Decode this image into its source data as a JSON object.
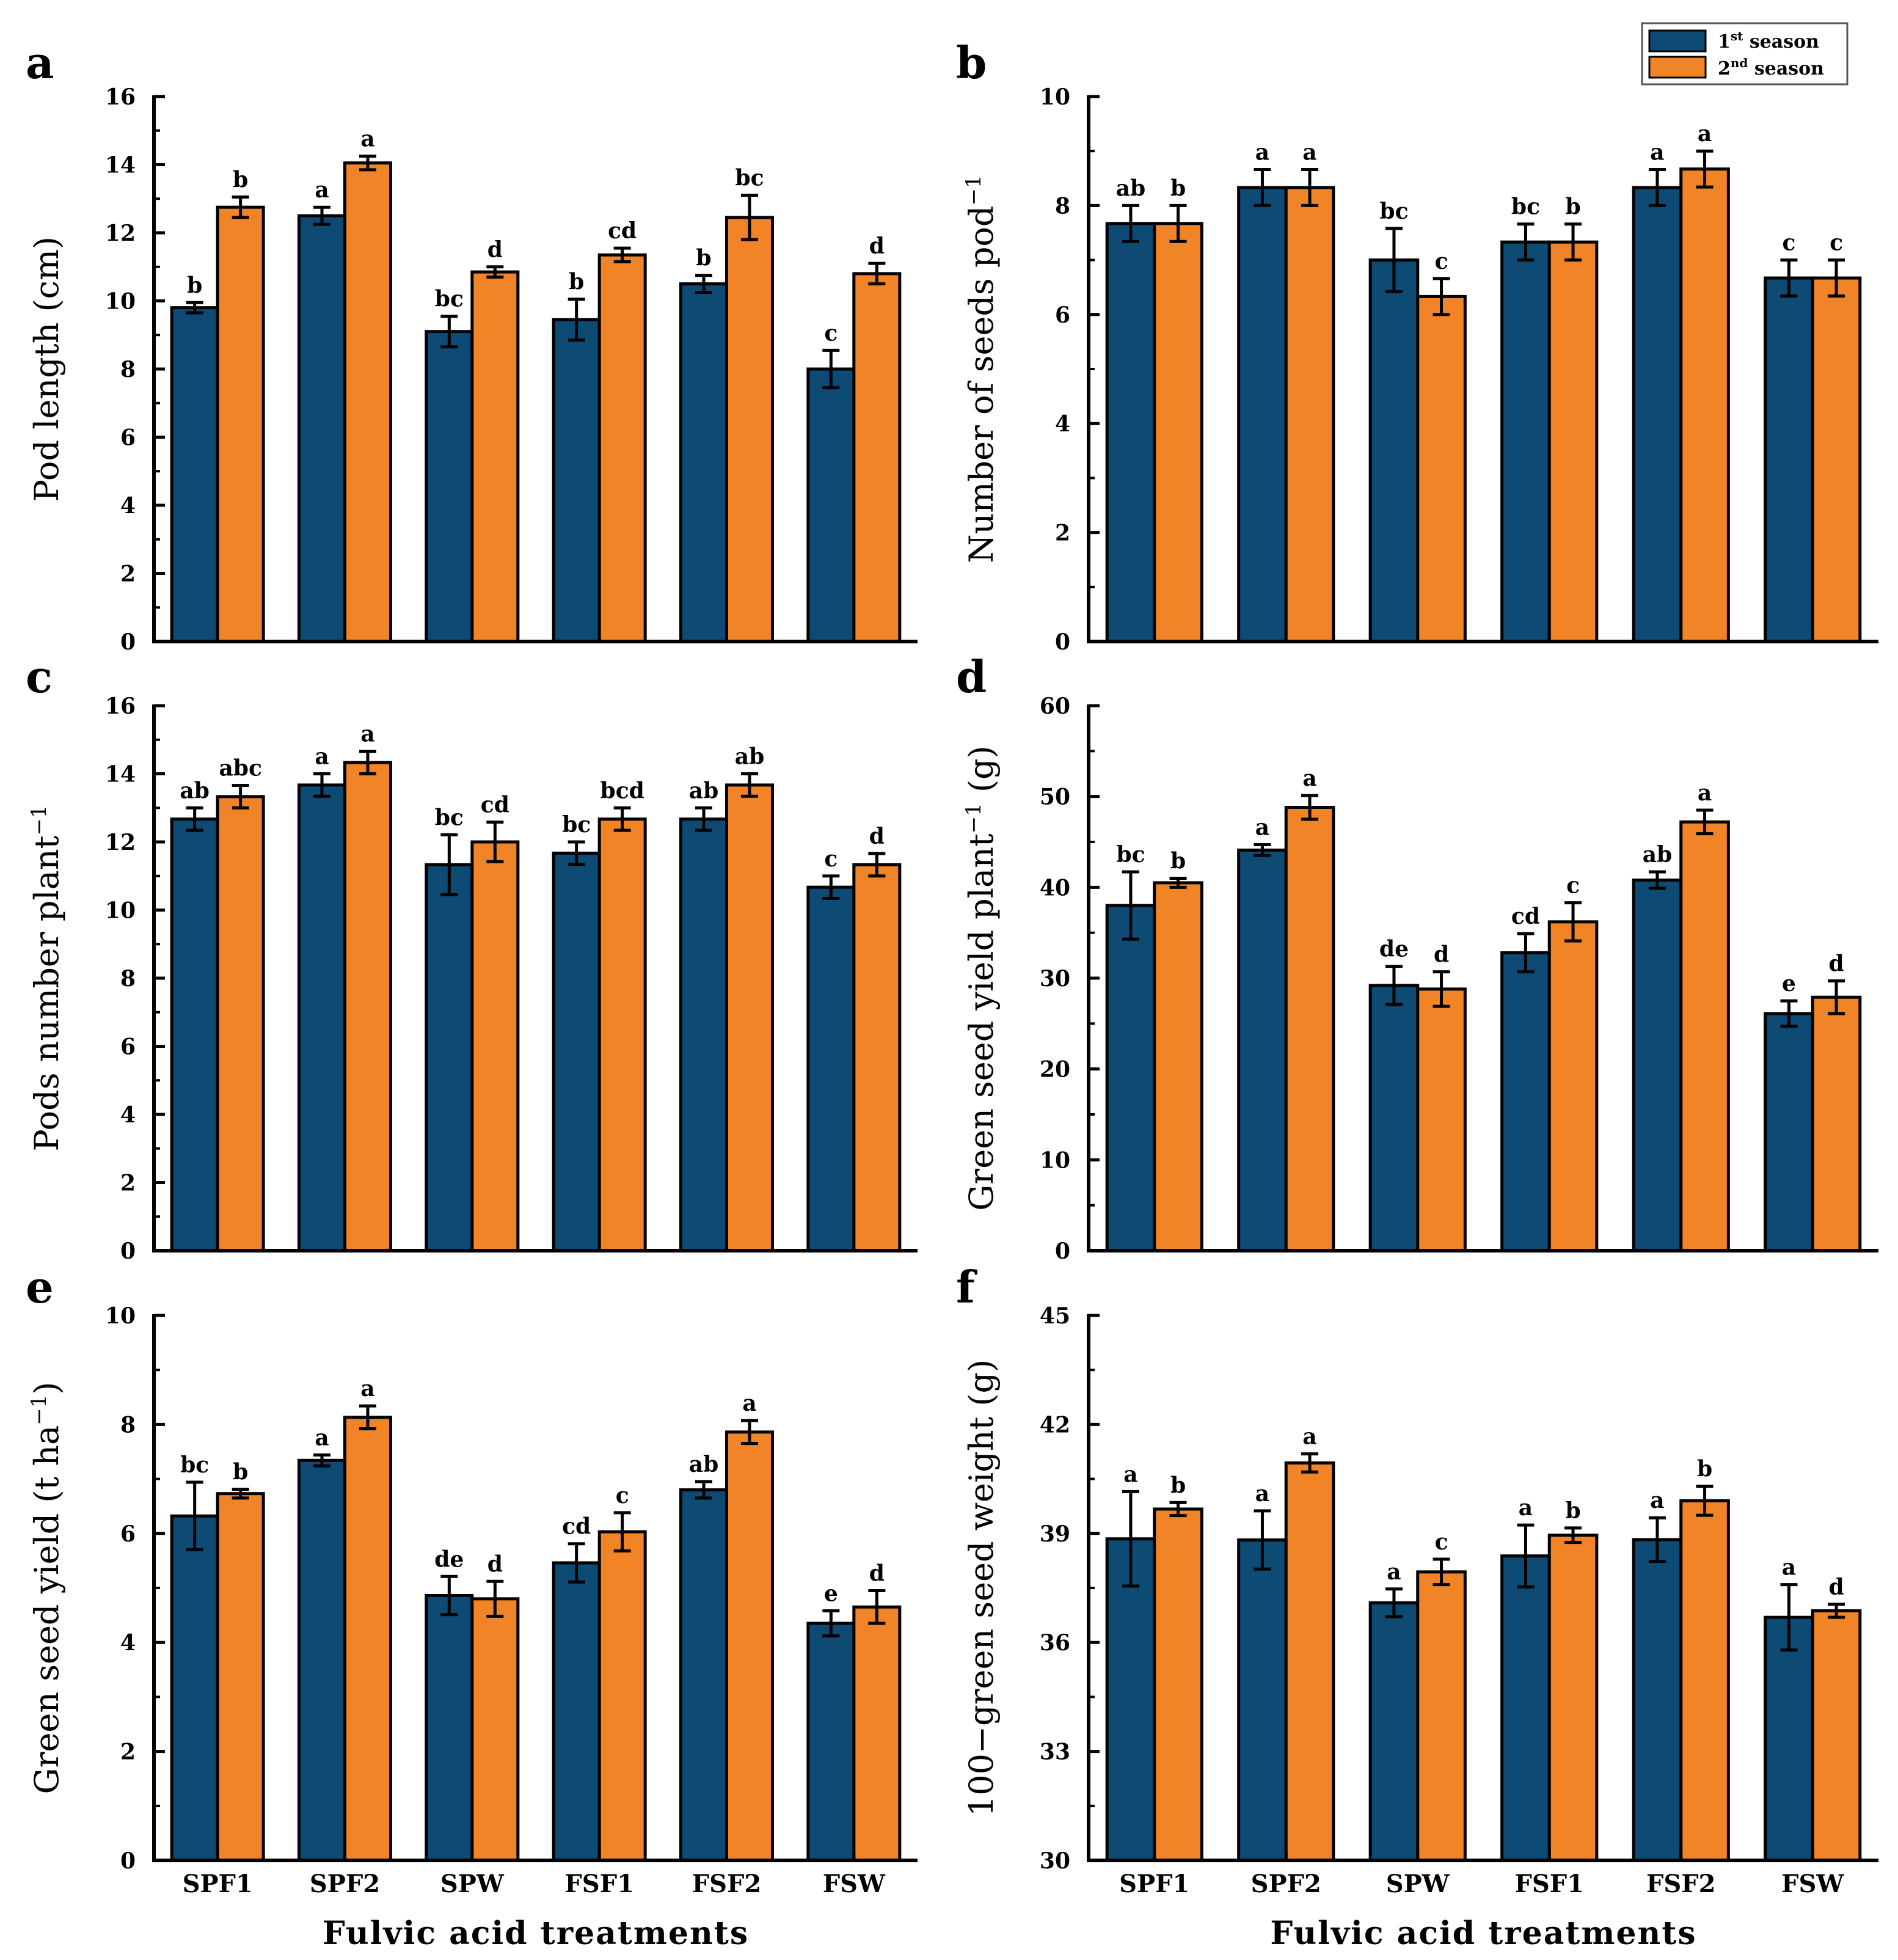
{
  "colors": {
    "season1": "#0D4A74",
    "season2": "#F28428",
    "axis": "#000000"
  },
  "legend": {
    "season1_base": "1",
    "season1_sup": "st",
    "season1_rest": " season",
    "season2_base": "2",
    "season2_sup": "nd",
    "season2_rest": " season"
  },
  "chart_data": [
    {
      "panel": "a",
      "type": "bar",
      "categories": [
        "SPF1",
        "SPF2",
        "SPW",
        "FSF1",
        "FSF2",
        "FSW"
      ],
      "ylabel": "Pod length (cm)",
      "ylabel_parts": [
        "Pod length (cm)"
      ],
      "xlabel": "",
      "ylim": [
        0,
        16
      ],
      "yticks": [
        0,
        2,
        4,
        6,
        8,
        10,
        12,
        14,
        16
      ],
      "series": [
        {
          "name": "1st season",
          "values": [
            9.8,
            12.5,
            9.1,
            9.45,
            10.5,
            8.0
          ],
          "errors": [
            0.15,
            0.25,
            0.45,
            0.6,
            0.25,
            0.55
          ],
          "labels": [
            "b",
            "a",
            "bc",
            "b",
            "b",
            "c"
          ]
        },
        {
          "name": "2nd season",
          "values": [
            12.75,
            14.05,
            10.85,
            11.35,
            12.45,
            10.8
          ],
          "errors": [
            0.3,
            0.2,
            0.15,
            0.2,
            0.65,
            0.3
          ],
          "labels": [
            "b",
            "a",
            "d",
            "cd",
            "bc",
            "d"
          ]
        }
      ]
    },
    {
      "panel": "b",
      "type": "bar",
      "categories": [
        "SPF1",
        "SPF2",
        "SPW",
        "FSF1",
        "FSF2",
        "FSW"
      ],
      "ylabel": "Number of seeds pod−1",
      "ylabel_parts": [
        "Number of seeds pod",
        "−1"
      ],
      "xlabel": "",
      "ylim": [
        0,
        10
      ],
      "yticks": [
        0,
        2,
        4,
        6,
        8,
        10
      ],
      "series": [
        {
          "name": "1st season",
          "values": [
            7.67,
            8.33,
            7.0,
            7.33,
            8.33,
            6.67
          ],
          "errors": [
            0.33,
            0.33,
            0.58,
            0.33,
            0.33,
            0.33
          ],
          "labels": [
            "ab",
            "a",
            "bc",
            "bc",
            "a",
            "c"
          ]
        },
        {
          "name": "2nd season",
          "values": [
            7.67,
            8.33,
            6.33,
            7.33,
            8.67,
            6.67
          ],
          "errors": [
            0.33,
            0.33,
            0.33,
            0.33,
            0.33,
            0.33
          ],
          "labels": [
            "b",
            "a",
            "c",
            "b",
            "a",
            "c"
          ]
        }
      ]
    },
    {
      "panel": "c",
      "type": "bar",
      "categories": [
        "SPF1",
        "SPF2",
        "SPW",
        "FSF1",
        "FSF2",
        "FSW"
      ],
      "ylabel": "Pods number plant−1",
      "ylabel_parts": [
        "Pods number plant",
        "−1"
      ],
      "xlabel": "",
      "ylim": [
        0,
        16
      ],
      "yticks": [
        0,
        2,
        4,
        6,
        8,
        10,
        12,
        14,
        16
      ],
      "series": [
        {
          "name": "1st season",
          "values": [
            12.67,
            13.67,
            11.33,
            11.67,
            12.67,
            10.67
          ],
          "errors": [
            0.33,
            0.33,
            0.88,
            0.33,
            0.33,
            0.33
          ],
          "labels": [
            "ab",
            "a",
            "bc",
            "bc",
            "ab",
            "c"
          ]
        },
        {
          "name": "2nd season",
          "values": [
            13.33,
            14.33,
            12.0,
            12.67,
            13.67,
            11.33
          ],
          "errors": [
            0.33,
            0.33,
            0.58,
            0.33,
            0.33,
            0.33
          ],
          "labels": [
            "abc",
            "a",
            "cd",
            "bcd",
            "ab",
            "d"
          ]
        }
      ]
    },
    {
      "panel": "d",
      "type": "bar",
      "categories": [
        "SPF1",
        "SPF2",
        "SPW",
        "FSF1",
        "FSF2",
        "FSW"
      ],
      "ylabel": "Green seed yield plant−1 (g)",
      "ylabel_parts": [
        "Green seed yield plant",
        "−1",
        " (g)"
      ],
      "xlabel": "",
      "ylim": [
        0,
        60
      ],
      "yticks": [
        0,
        10,
        20,
        30,
        40,
        50,
        60
      ],
      "series": [
        {
          "name": "1st season",
          "values": [
            38.0,
            44.1,
            29.2,
            32.8,
            40.8,
            26.1
          ],
          "errors": [
            3.7,
            0.6,
            2.1,
            2.1,
            0.9,
            1.4
          ],
          "labels": [
            "bc",
            "a",
            "de",
            "cd",
            "ab",
            "e"
          ]
        },
        {
          "name": "2nd season",
          "values": [
            40.5,
            48.8,
            28.8,
            36.2,
            47.2,
            27.9
          ],
          "errors": [
            0.5,
            1.3,
            1.9,
            2.1,
            1.3,
            1.8
          ],
          "labels": [
            "b",
            "a",
            "d",
            "c",
            "a",
            "d"
          ]
        }
      ]
    },
    {
      "panel": "e",
      "type": "bar",
      "categories": [
        "SPF1",
        "SPF2",
        "SPW",
        "FSF1",
        "FSF2",
        "FSW"
      ],
      "ylabel": "Green seed yield (t ha−1)",
      "ylabel_parts": [
        "Green seed yield (t ha",
        "−1",
        ")"
      ],
      "xlabel": "Fulvic acid treatments",
      "ylim": [
        0,
        10
      ],
      "yticks": [
        0,
        2,
        4,
        6,
        8,
        10
      ],
      "series": [
        {
          "name": "1st season",
          "values": [
            6.32,
            7.34,
            4.86,
            5.46,
            6.8,
            4.35
          ],
          "errors": [
            0.62,
            0.1,
            0.35,
            0.35,
            0.15,
            0.23
          ],
          "labels": [
            "bc",
            "a",
            "de",
            "cd",
            "ab",
            "e"
          ]
        },
        {
          "name": "2nd season",
          "values": [
            6.73,
            8.13,
            4.8,
            6.03,
            7.86,
            4.65
          ],
          "errors": [
            0.08,
            0.21,
            0.32,
            0.35,
            0.21,
            0.3
          ],
          "labels": [
            "b",
            "a",
            "d",
            "c",
            "a",
            "d"
          ]
        }
      ]
    },
    {
      "panel": "f",
      "type": "bar",
      "categories": [
        "SPF1",
        "SPF2",
        "SPW",
        "FSF1",
        "FSF2",
        "FSW"
      ],
      "ylabel": "100−green seed weight (g)",
      "ylabel_parts": [
        "100−green seed weight (g)"
      ],
      "xlabel": "Fulvic acid treatments",
      "ylim": [
        30,
        45
      ],
      "yticks": [
        30,
        33,
        36,
        39,
        42,
        45
      ],
      "series": [
        {
          "name": "1st season",
          "values": [
            38.85,
            38.82,
            37.09,
            38.38,
            38.83,
            36.69
          ],
          "errors": [
            1.3,
            0.8,
            0.38,
            0.85,
            0.6,
            0.9
          ],
          "labels": [
            "a",
            "a",
            "a",
            "a",
            "a",
            "a"
          ]
        },
        {
          "name": "2nd season",
          "values": [
            39.67,
            40.94,
            37.94,
            38.95,
            39.9,
            36.87
          ],
          "errors": [
            0.18,
            0.25,
            0.35,
            0.2,
            0.4,
            0.18
          ],
          "labels": [
            "b",
            "a",
            "c",
            "b",
            "b",
            "d"
          ]
        }
      ]
    }
  ]
}
